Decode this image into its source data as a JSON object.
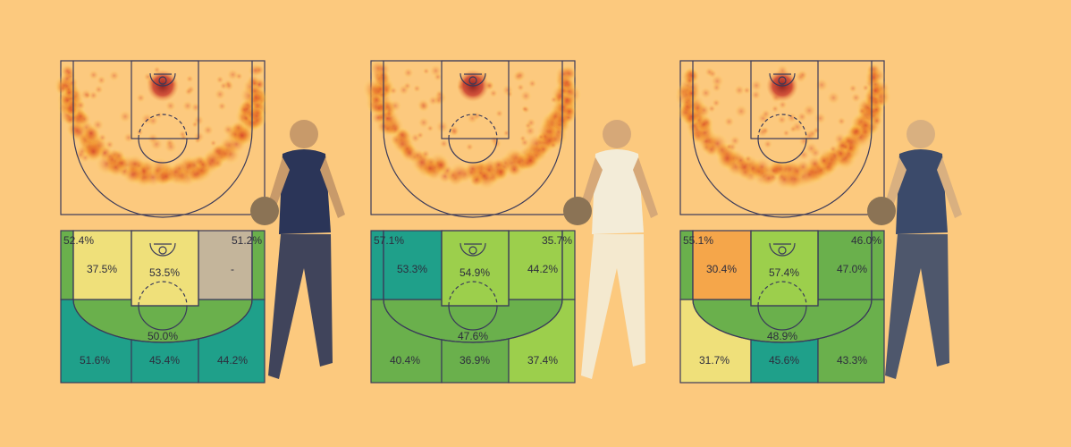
{
  "courts": [
    {
      "zones": [
        {
          "label": "52.4%",
          "color": "#6ab04c"
        },
        {
          "label": "37.5%",
          "color": "#efe07a"
        },
        {
          "label": "53.5%",
          "color": "#efe07a"
        },
        {
          "label": "51.2%",
          "color": "#6ab04c"
        },
        {
          "label": "-",
          "color": "#c4b59b"
        },
        {
          "label": "50.0%",
          "color": "#6ab04c"
        },
        {
          "label": "51.6%",
          "color": "#1fa08a"
        },
        {
          "label": "45.4%",
          "color": "#1fa08a"
        },
        {
          "label": "44.2%",
          "color": "#1fa08a"
        }
      ]
    },
    {
      "zones": [
        {
          "label": "57.1%",
          "color": "#1fa08a"
        },
        {
          "label": "53.3%",
          "color": "#1fa08a"
        },
        {
          "label": "54.9%",
          "color": "#9ccf4c"
        },
        {
          "label": "35.7%",
          "color": "#9ccf4c"
        },
        {
          "label": "44.2%",
          "color": "#9ccf4c"
        },
        {
          "label": "47.6%",
          "color": "#6ab04c"
        },
        {
          "label": "40.4%",
          "color": "#6ab04c"
        },
        {
          "label": "36.9%",
          "color": "#6ab04c"
        },
        {
          "label": "37.4%",
          "color": "#9ccf4c"
        }
      ]
    },
    {
      "zones": [
        {
          "label": "55.1%",
          "color": "#6ab04c"
        },
        {
          "label": "30.4%",
          "color": "#f5a64a"
        },
        {
          "label": "57.4%",
          "color": "#9ccf4c"
        },
        {
          "label": "46.0%",
          "color": "#6ab04c"
        },
        {
          "label": "47.0%",
          "color": "#6ab04c"
        },
        {
          "label": "48.9%",
          "color": "#6ab04c"
        },
        {
          "label": "31.7%",
          "color": "#efe07a"
        },
        {
          "label": "45.6%",
          "color": "#1fa08a"
        },
        {
          "label": "43.3%",
          "color": "#6ab04c"
        }
      ]
    }
  ]
}
